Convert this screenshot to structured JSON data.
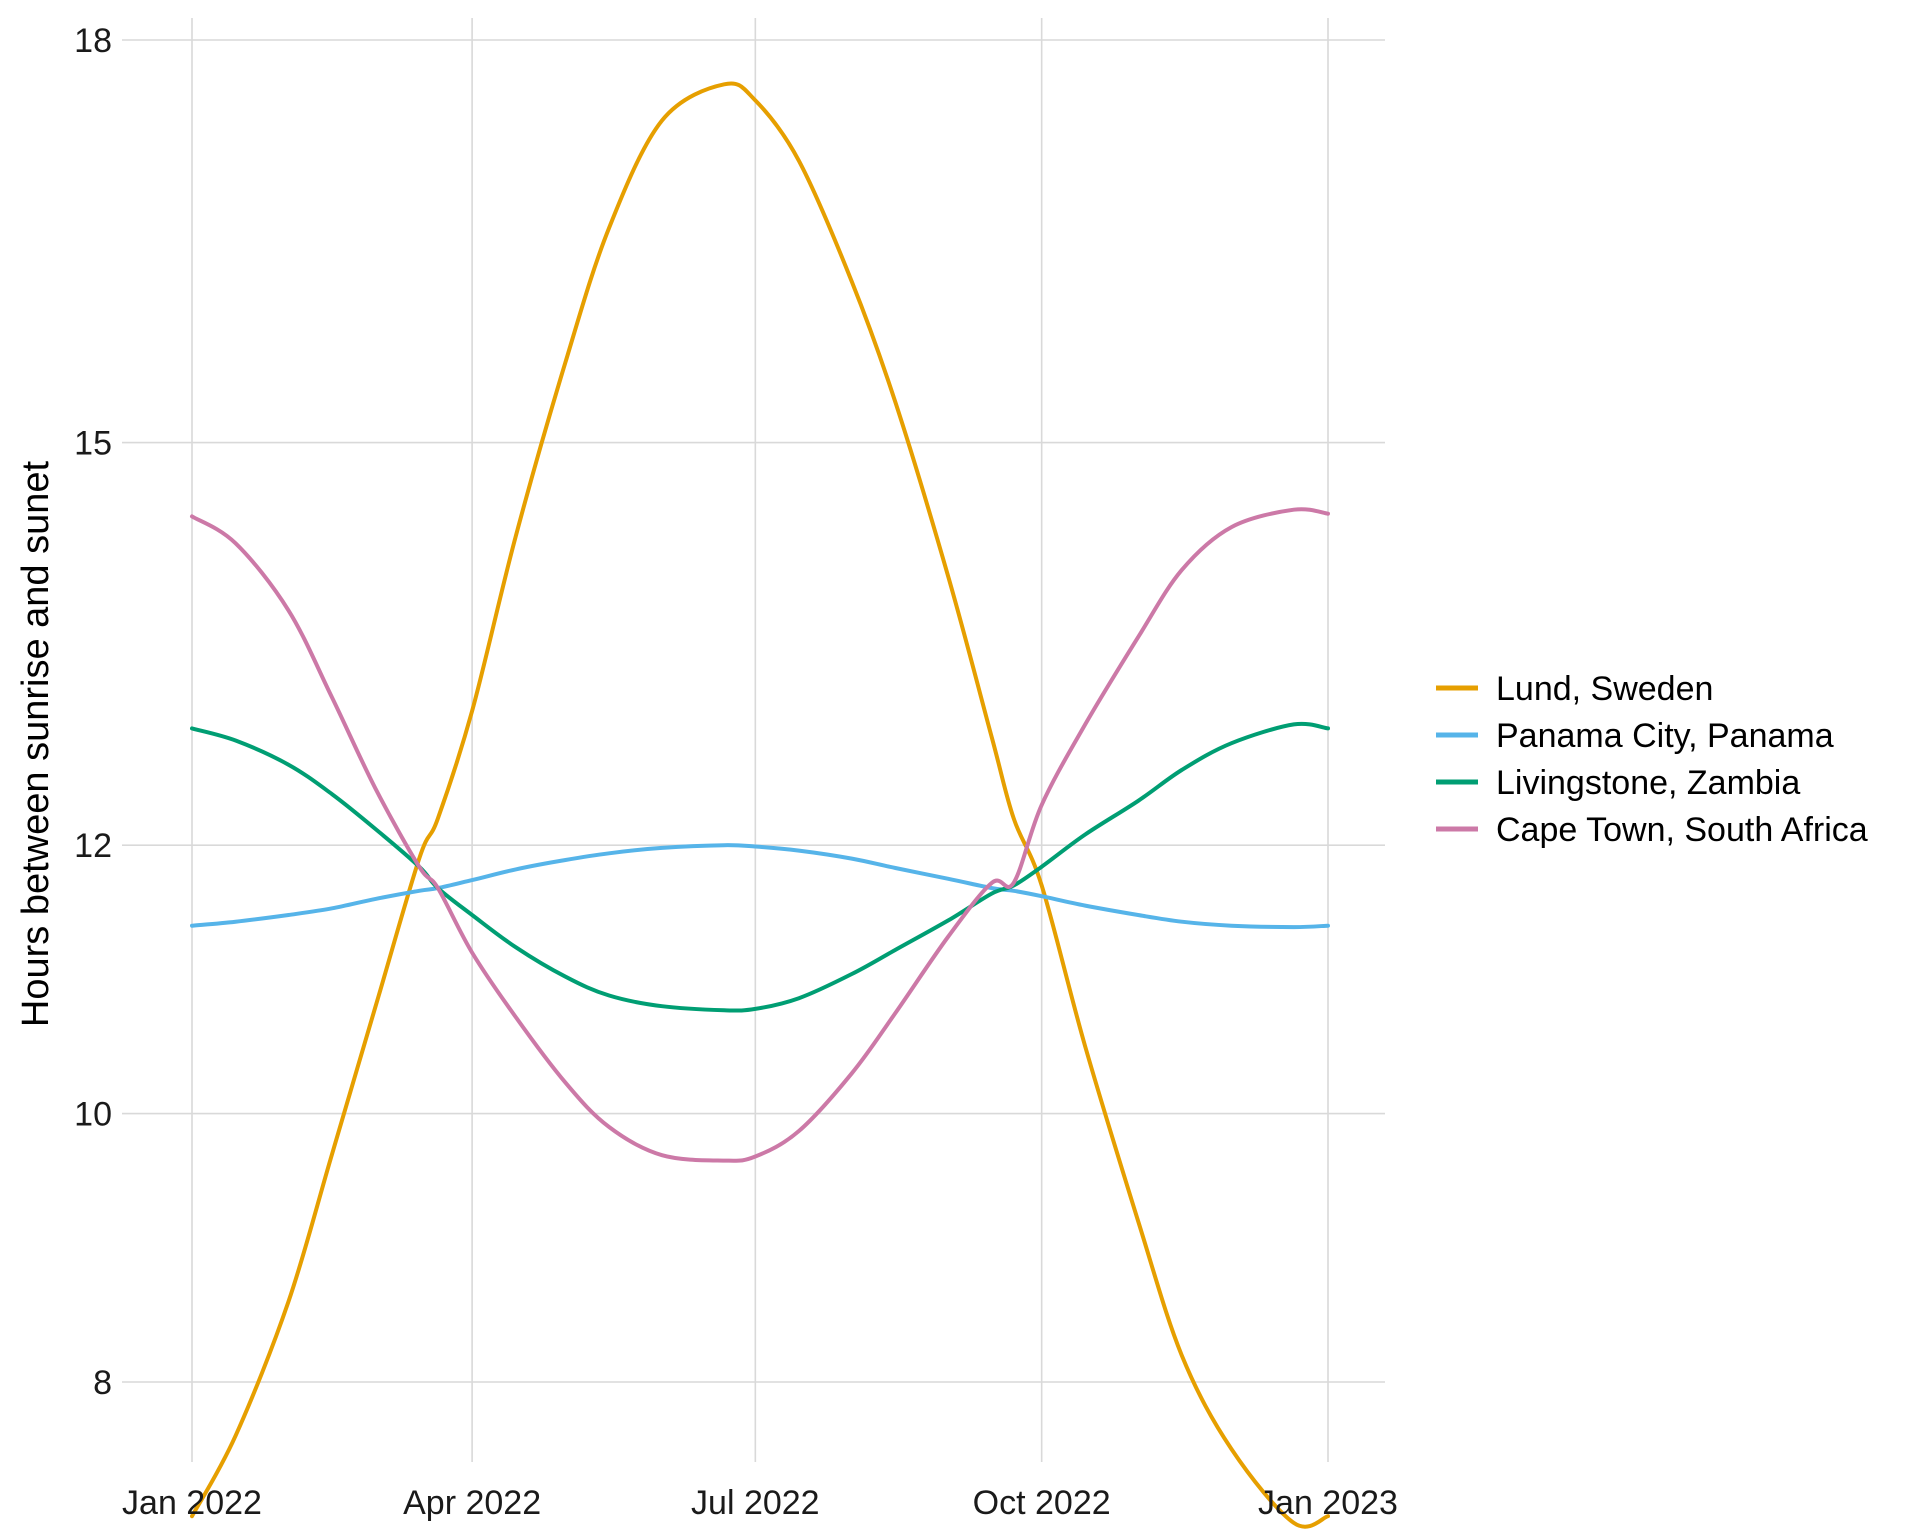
{
  "chart_data": {
    "type": "line",
    "title": "",
    "xlabel": "",
    "ylabel": "Hours between sunrise and sunet",
    "ylim": [
      7.3,
      18.2
    ],
    "xlim": [
      "2022-01-01",
      "2023-01-01"
    ],
    "y_ticks": [
      8,
      10,
      12,
      15,
      18
    ],
    "y_tick_labels": [
      "8",
      "10",
      "12",
      "15",
      "18"
    ],
    "x_ticks": [
      "2022-01-01",
      "2022-04-01",
      "2022-07-01",
      "2022-10-01",
      "2023-01-01"
    ],
    "x_tick_labels": [
      "Jan 2022",
      "Apr 2022",
      "Jul 2022",
      "Oct 2022",
      "Jan 2023"
    ],
    "grid": true,
    "legend_position": "right",
    "series": [
      {
        "name": "Lund, Sweden",
        "color": "#E69F00",
        "dates": [
          "2022-01-01",
          "2022-01-15",
          "2022-02-01",
          "2022-02-15",
          "2022-03-01",
          "2022-03-15",
          "2022-03-21",
          "2022-04-01",
          "2022-04-15",
          "2022-05-01",
          "2022-05-15",
          "2022-06-01",
          "2022-06-21",
          "2022-07-01",
          "2022-07-15",
          "2022-08-01",
          "2022-08-15",
          "2022-09-01",
          "2022-09-15",
          "2022-09-22",
          "2022-10-01",
          "2022-10-15",
          "2022-11-01",
          "2022-11-15",
          "2022-12-01",
          "2022-12-21",
          "2023-01-01"
        ],
        "values": [
          7.0,
          7.6,
          8.6,
          9.7,
          10.8,
          11.9,
          12.2,
          13.0,
          14.3,
          15.6,
          16.6,
          17.4,
          17.67,
          17.55,
          17.1,
          16.2,
          15.3,
          14.0,
          12.8,
          12.2,
          11.7,
          10.5,
          9.2,
          8.2,
          7.5,
          6.95,
          7.0
        ]
      },
      {
        "name": "Panama City, Panama",
        "color": "#56B4E9",
        "dates": [
          "2022-01-01",
          "2022-01-15",
          "2022-02-01",
          "2022-02-15",
          "2022-03-01",
          "2022-03-15",
          "2022-03-21",
          "2022-04-01",
          "2022-04-15",
          "2022-05-01",
          "2022-05-15",
          "2022-06-01",
          "2022-06-21",
          "2022-07-01",
          "2022-07-15",
          "2022-08-01",
          "2022-08-15",
          "2022-09-01",
          "2022-09-15",
          "2022-09-22",
          "2022-10-01",
          "2022-10-15",
          "2022-11-01",
          "2022-11-15",
          "2022-12-01",
          "2022-12-21",
          "2023-01-01"
        ],
        "values": [
          11.4,
          11.43,
          11.48,
          11.53,
          11.6,
          11.66,
          11.68,
          11.74,
          11.82,
          11.89,
          11.94,
          11.98,
          12.0,
          11.99,
          11.96,
          11.9,
          11.83,
          11.75,
          11.68,
          11.66,
          11.62,
          11.55,
          11.48,
          11.43,
          11.4,
          11.39,
          11.4
        ]
      },
      {
        "name": "Livingstone, Zambia",
        "color": "#009E73",
        "dates": [
          "2022-01-01",
          "2022-01-15",
          "2022-02-01",
          "2022-02-15",
          "2022-03-01",
          "2022-03-15",
          "2022-03-21",
          "2022-04-01",
          "2022-04-15",
          "2022-05-01",
          "2022-05-15",
          "2022-06-01",
          "2022-06-21",
          "2022-07-01",
          "2022-07-15",
          "2022-08-01",
          "2022-08-15",
          "2022-09-01",
          "2022-09-15",
          "2022-09-22",
          "2022-10-01",
          "2022-10-15",
          "2022-11-01",
          "2022-11-15",
          "2022-12-01",
          "2022-12-21",
          "2023-01-01"
        ],
        "values": [
          12.87,
          12.78,
          12.6,
          12.38,
          12.12,
          11.84,
          11.68,
          11.48,
          11.24,
          11.02,
          10.88,
          10.8,
          10.77,
          10.78,
          10.86,
          11.04,
          11.22,
          11.44,
          11.64,
          11.7,
          11.84,
          12.08,
          12.33,
          12.56,
          12.76,
          12.9,
          12.87
        ]
      },
      {
        "name": "Cape Town, South Africa",
        "color": "#CC79A7",
        "dates": [
          "2022-01-01",
          "2022-01-15",
          "2022-02-01",
          "2022-02-15",
          "2022-03-01",
          "2022-03-15",
          "2022-03-21",
          "2022-04-01",
          "2022-04-15",
          "2022-05-01",
          "2022-05-15",
          "2022-06-01",
          "2022-06-21",
          "2022-07-01",
          "2022-07-15",
          "2022-08-01",
          "2022-08-15",
          "2022-09-01",
          "2022-09-15",
          "2022-09-22",
          "2022-10-01",
          "2022-10-15",
          "2022-11-01",
          "2022-11-15",
          "2022-12-01",
          "2022-12-21",
          "2023-01-01"
        ],
        "values": [
          14.45,
          14.25,
          13.75,
          13.1,
          12.42,
          11.84,
          11.68,
          11.2,
          10.72,
          10.23,
          9.9,
          9.69,
          9.65,
          9.68,
          9.87,
          10.3,
          10.75,
          11.32,
          11.72,
          11.72,
          12.3,
          12.9,
          13.55,
          14.05,
          14.37,
          14.5,
          14.47
        ]
      }
    ]
  }
}
